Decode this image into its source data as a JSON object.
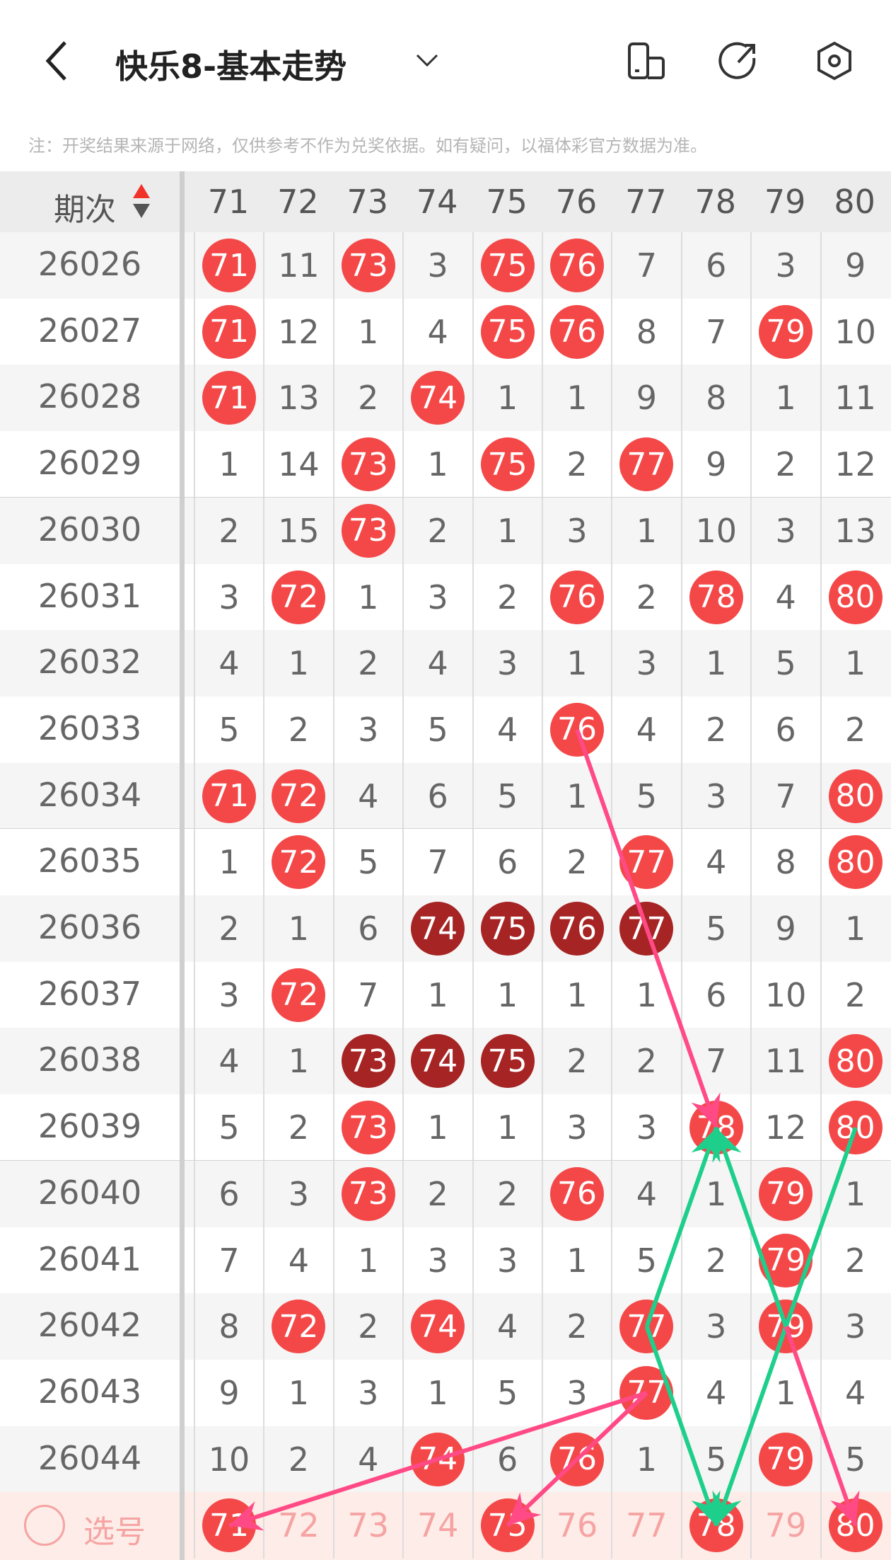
{
  "header": {
    "title": "快乐8-基本走势",
    "icons": [
      "back-icon",
      "chevron-down-icon",
      "device-layout-icon",
      "share-icon",
      "settings-icon"
    ]
  },
  "note": "注：开奖结果来源于网络，仅供参考不作为兑奖依据。如有疑问，以福体彩官方数据为准。",
  "table": {
    "period_header": "期次",
    "columns": [
      "71",
      "72",
      "73",
      "74",
      "75",
      "76",
      "77",
      "78",
      "79",
      "80"
    ],
    "rows": [
      {
        "period": "26026",
        "cells": [
          "71*",
          "11",
          "73*",
          "3",
          "75*",
          "76*",
          "7",
          "6",
          "3",
          "9"
        ]
      },
      {
        "period": "26027",
        "cells": [
          "71*",
          "12",
          "1",
          "4",
          "75*",
          "76*",
          "8",
          "7",
          "79*",
          "10"
        ]
      },
      {
        "period": "26028",
        "cells": [
          "71*",
          "13",
          "2",
          "74*",
          "1",
          "1",
          "9",
          "8",
          "1",
          "11"
        ]
      },
      {
        "period": "26029",
        "cells": [
          "1",
          "14",
          "73*",
          "1",
          "75*",
          "2",
          "77*",
          "9",
          "2",
          "12"
        ]
      },
      {
        "period": "26030",
        "cells": [
          "2",
          "15",
          "73*",
          "2",
          "1",
          "3",
          "1",
          "10",
          "3",
          "13"
        ]
      },
      {
        "period": "26031",
        "cells": [
          "3",
          "72*",
          "1",
          "3",
          "2",
          "76*",
          "2",
          "78*",
          "4",
          "80*"
        ]
      },
      {
        "period": "26032",
        "cells": [
          "4",
          "1",
          "2",
          "4",
          "3",
          "1",
          "3",
          "1",
          "5",
          "1"
        ]
      },
      {
        "period": "26033",
        "cells": [
          "5",
          "2",
          "3",
          "5",
          "4",
          "76*",
          "4",
          "2",
          "6",
          "2"
        ]
      },
      {
        "period": "26034",
        "cells": [
          "71*",
          "72*",
          "4",
          "6",
          "5",
          "1",
          "5",
          "3",
          "7",
          "80*"
        ]
      },
      {
        "period": "26035",
        "cells": [
          "1",
          "72*",
          "5",
          "7",
          "6",
          "2",
          "77*",
          "4",
          "8",
          "80*"
        ]
      },
      {
        "period": "26036",
        "cells": [
          "2",
          "1",
          "6",
          "74#",
          "75#",
          "76#",
          "77#",
          "5",
          "9",
          "1"
        ]
      },
      {
        "period": "26037",
        "cells": [
          "3",
          "72*",
          "7",
          "1",
          "1",
          "1",
          "1",
          "6",
          "10",
          "2"
        ]
      },
      {
        "period": "26038",
        "cells": [
          "4",
          "1",
          "73#",
          "74#",
          "75#",
          "2",
          "2",
          "7",
          "11",
          "80*"
        ]
      },
      {
        "period": "26039",
        "cells": [
          "5",
          "2",
          "73*",
          "1",
          "1",
          "3",
          "3",
          "78*",
          "12",
          "80*"
        ]
      },
      {
        "period": "26040",
        "cells": [
          "6",
          "3",
          "73*",
          "2",
          "2",
          "76*",
          "4",
          "1",
          "79*",
          "1"
        ]
      },
      {
        "period": "26041",
        "cells": [
          "7",
          "4",
          "1",
          "3",
          "3",
          "1",
          "5",
          "2",
          "79*",
          "2"
        ]
      },
      {
        "period": "26042",
        "cells": [
          "8",
          "72*",
          "2",
          "74*",
          "4",
          "2",
          "77*",
          "3",
          "79*",
          "3"
        ]
      },
      {
        "period": "26043",
        "cells": [
          "9",
          "1",
          "3",
          "1",
          "5",
          "3",
          "77*",
          "4",
          "1",
          "4"
        ]
      },
      {
        "period": "26044",
        "cells": [
          "10",
          "2",
          "4",
          "74*",
          "6",
          "76*",
          "1",
          "5",
          "79*",
          "5"
        ]
      }
    ],
    "select_row": {
      "label": "选号",
      "selected": [
        "71",
        "75",
        "78",
        "80"
      ]
    }
  },
  "colors": {
    "hit": "#f44848",
    "repeat_hit": "#a62424",
    "pink_arrow": "#ff4a86",
    "green_arrow": "#1ecf8c"
  },
  "arrows": [
    {
      "from": [
        "26033",
        "76"
      ],
      "to": [
        "26039",
        "78"
      ],
      "color": "pink"
    },
    {
      "from": [
        "26042",
        "77"
      ],
      "to": [
        "26039",
        "78"
      ],
      "color": "green"
    },
    {
      "from": [
        "26042",
        "79"
      ],
      "to": [
        "26039",
        "78"
      ],
      "color": "green"
    },
    {
      "from": [
        "26042",
        "77"
      ],
      "to": [
        "select",
        "78"
      ],
      "color": "green"
    },
    {
      "from": [
        "26039",
        "80"
      ],
      "to": [
        "select",
        "78"
      ],
      "color": "green"
    },
    {
      "from": [
        "26042",
        "79"
      ],
      "to": [
        "select",
        "80"
      ],
      "color": "pink"
    },
    {
      "from": [
        "26043",
        "77"
      ],
      "to": [
        "select",
        "71"
      ],
      "color": "pink"
    },
    {
      "from": [
        "26043",
        "77"
      ],
      "to": [
        "select",
        "75"
      ],
      "color": "pink"
    }
  ]
}
